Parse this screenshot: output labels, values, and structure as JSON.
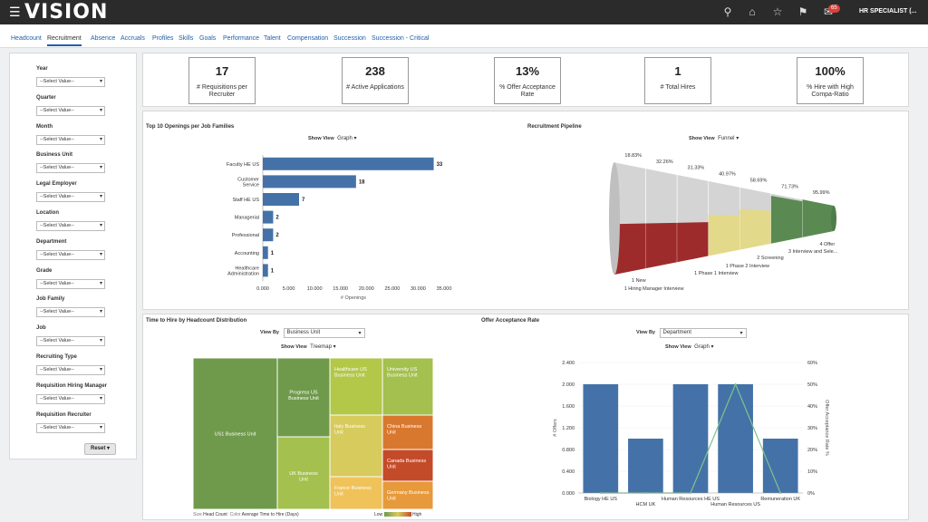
{
  "topbar": {
    "brand": "VISION",
    "notification_count": "65",
    "user": "HR SPECIALIST (...",
    "icons": [
      "search-icon",
      "home-icon",
      "star-icon",
      "flag-icon",
      "notifications-icon"
    ]
  },
  "tabs": [
    "Headcount",
    "Recruitment",
    "Absence",
    "Accruals",
    "Profiles",
    "Skills",
    "Goals",
    "Performance",
    "Talent",
    "Compensation",
    "Succession",
    "Succession - Critical"
  ],
  "active_tab": "Recruitment",
  "filters": [
    {
      "label": "Year",
      "value": "--Select Value--"
    },
    {
      "label": "Quarter",
      "value": "--Select Value--"
    },
    {
      "label": "Month",
      "value": "--Select Value--"
    },
    {
      "label": "Business Unit",
      "value": "--Select Value--"
    },
    {
      "label": "Legal Employer",
      "value": "--Select Value--"
    },
    {
      "label": "Location",
      "value": "--Select Value--"
    },
    {
      "label": "Department",
      "value": "--Select Value--"
    },
    {
      "label": "Grade",
      "value": "--Select Value--"
    },
    {
      "label": "Job Family",
      "value": "--Select Value--"
    },
    {
      "label": "Job",
      "value": "--Select Value--"
    },
    {
      "label": "Recruiting Type",
      "value": "--Select Value--"
    },
    {
      "label": "Requisition Hiring Manager",
      "value": "--Select Value--"
    },
    {
      "label": "Requisition Recruiter",
      "value": "--Select Value--"
    }
  ],
  "reset_label": "Reset",
  "kpis": [
    {
      "value": "17",
      "label": "# Requisitions per Recruiter"
    },
    {
      "value": "238",
      "label": "# Active Applications"
    },
    {
      "value": "13%",
      "label": "% Offer Acceptance Rate"
    },
    {
      "value": "1",
      "label": "# Total Hires"
    },
    {
      "value": "100%",
      "label": "% Hire with High Compa-Ratio"
    }
  ],
  "show_view_label": "Show View",
  "view_by_label": "View By",
  "panels": {
    "openings": {
      "title": "Top 10 Openings per Job Families",
      "view": "Graph"
    },
    "pipeline": {
      "title": "Recruitment Pipeline",
      "view": "Funnel"
    },
    "time_to_hire": {
      "title": "Time to Hire by Headcount Distribution",
      "view_by": "Business Unit",
      "view": "Treemap"
    },
    "offer_rate": {
      "title": "Offer Acceptance Rate",
      "view_by": "Department",
      "view": "Graph"
    }
  },
  "treemap_legend": {
    "size_label": "Size",
    "size_value": "Head Count",
    "color_label": "Color",
    "color_value": "Average Time to Hire (Days)",
    "low": "Low",
    "high": "High"
  },
  "chart_data": [
    {
      "type": "bar",
      "orientation": "horizontal",
      "title": "Top 10 Openings per Job Families",
      "categories": [
        "Faculty HE US",
        "Customer Service",
        "Staff HE US",
        "Managerial",
        "Professional",
        "Accounting",
        "Healthcare Administration"
      ],
      "category_lines": [
        [
          "Faculty HE US"
        ],
        [
          "Customer",
          "Service"
        ],
        [
          "Staff HE US"
        ],
        [
          "Managerial"
        ],
        [
          "Professional"
        ],
        [
          "Accounting"
        ],
        [
          "Healthcare",
          "Administration"
        ]
      ],
      "values": [
        33,
        18,
        7,
        2,
        2,
        1,
        1
      ],
      "xlabel": "# Openings",
      "xlim": [
        0,
        35
      ],
      "xticks": [
        "0.000",
        "5.000",
        "10.000",
        "15.000",
        "20.000",
        "25.000",
        "30.000",
        "35.000"
      ],
      "color": "#4472a8"
    },
    {
      "type": "funnel",
      "title": "Recruitment Pipeline",
      "stages": [
        "1 New",
        "1 Hiring Manager Interview",
        "1 Phase 1 Interview",
        "1 Phase 2 Interview",
        "2 Screening",
        "3 Interview and Sele...",
        "4 Offer"
      ],
      "percent_labels": [
        "18.83%",
        "32.26%",
        "31.33%",
        "40.97%",
        "58.69%",
        "71.73%",
        "95.99%"
      ]
    },
    {
      "type": "treemap",
      "title": "Time to Hire by Headcount Distribution",
      "cells": [
        {
          "label": "US1 Business Unit",
          "color": "#6f9a4b"
        },
        {
          "label": "Progress US Business Unit",
          "color": "#6f9a4b"
        },
        {
          "label": "UK Business Unit",
          "color": "#a4c04e"
        },
        {
          "label": "Healthcare US Business Unit",
          "color": "#b3c748"
        },
        {
          "label": "University US Business Unit",
          "color": "#a4c04e"
        },
        {
          "label": "Italy Business Unit",
          "color": "#d6cb5c"
        },
        {
          "label": "France Business Unit",
          "color": "#efc25a"
        },
        {
          "label": "China Business Unit",
          "color": "#d8782f"
        },
        {
          "label": "Canada Business Unit",
          "color": "#c44b2a"
        },
        {
          "label": "Germany Business Unit",
          "color": "#e69a3b"
        }
      ]
    },
    {
      "type": "bar",
      "title": "Offer Acceptance Rate",
      "categories": [
        "Biology HE US",
        "HCM UK",
        "Human Resources HE US",
        "Human Resources US",
        "Remuneration UK"
      ],
      "series": [
        {
          "name": "# Offers",
          "type": "bar",
          "values": [
            2,
            1,
            2,
            2,
            1
          ],
          "color": "#4472a8"
        },
        {
          "name": "Offer Acceptance Rate %",
          "type": "line",
          "values": [
            0,
            0,
            0,
            50,
            0
          ],
          "color": "#7cc38b"
        }
      ],
      "ylabel": "# Offers",
      "y2label": "Offer Acceptance Rate %",
      "ylim": [
        0,
        2.4
      ],
      "y2lim": [
        0,
        60
      ],
      "yticks": [
        "0.000",
        "0.400",
        "0.800",
        "1.200",
        "1.600",
        "2.000",
        "2.400"
      ],
      "y2ticks": [
        "0%",
        "10%",
        "20%",
        "30%",
        "40%",
        "50%",
        "60%"
      ]
    }
  ]
}
